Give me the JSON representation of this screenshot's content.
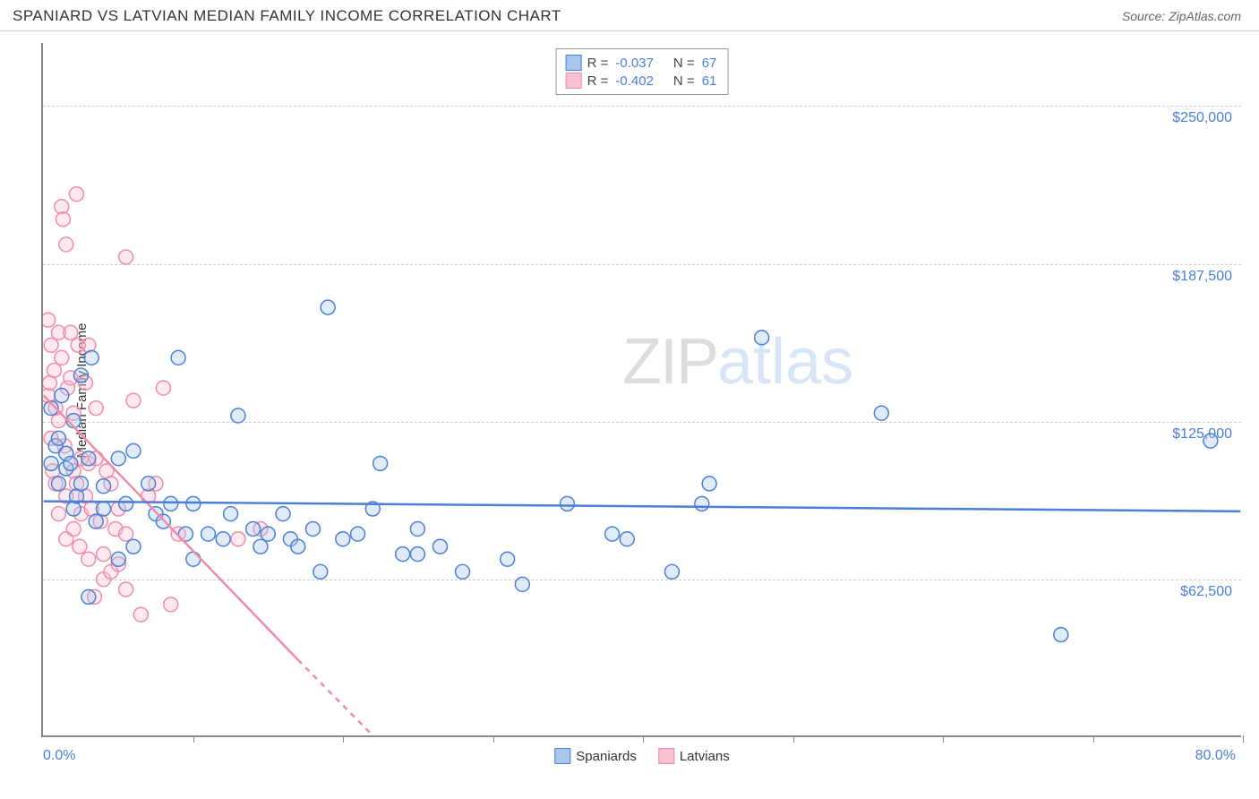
{
  "header": {
    "title": "SPANIARD VS LATVIAN MEDIAN FAMILY INCOME CORRELATION CHART",
    "source": "Source: ZipAtlas.com"
  },
  "watermark": {
    "zip": "ZIP",
    "atlas": "atlas"
  },
  "chart": {
    "type": "scatter",
    "background_color": "#ffffff",
    "grid_color": "#cccccc",
    "axis_color": "#888888",
    "y_axis_title": "Median Family Income",
    "y_axis_title_fontsize": 15,
    "x_axis_start_label": "0.0%",
    "x_axis_end_label": "80.0%",
    "tick_label_color": "#4a7fd8",
    "tick_label_fontsize": 16,
    "xlim": [
      0,
      80
    ],
    "ylim": [
      0,
      275000
    ],
    "x_ticks": [
      0,
      10,
      20,
      30,
      40,
      50,
      60,
      70,
      80
    ],
    "y_ticks": [
      62500,
      125000,
      187500,
      250000
    ],
    "y_tick_labels": [
      "$62,500",
      "$125,000",
      "$187,500",
      "$250,000"
    ],
    "marker_radius": 8,
    "marker_stroke_width": 1.5,
    "marker_fill_opacity": 0.35,
    "trend_line_width": 2.5,
    "series": {
      "spaniards": {
        "label": "Spaniards",
        "color_stroke": "#4a7fd8",
        "color_fill": "#a8c5ec",
        "R": "-0.037",
        "N": "67",
        "trend": {
          "x1": 0,
          "y1": 93000,
          "x2": 80,
          "y2": 89000
        },
        "points": [
          [
            0.5,
            108000
          ],
          [
            0.5,
            130000
          ],
          [
            0.8,
            115000
          ],
          [
            1,
            118000
          ],
          [
            1,
            100000
          ],
          [
            1.2,
            135000
          ],
          [
            1.5,
            106000
          ],
          [
            1.5,
            112000
          ],
          [
            1.8,
            108000
          ],
          [
            2,
            125000
          ],
          [
            2,
            90000
          ],
          [
            2.2,
            95000
          ],
          [
            2.5,
            100000
          ],
          [
            2.5,
            143000
          ],
          [
            3,
            55000
          ],
          [
            3,
            110000
          ],
          [
            3.2,
            150000
          ],
          [
            3.5,
            85000
          ],
          [
            4,
            90000
          ],
          [
            4,
            99000
          ],
          [
            5,
            70000
          ],
          [
            5,
            110000
          ],
          [
            5.5,
            92000
          ],
          [
            6,
            75000
          ],
          [
            6,
            113000
          ],
          [
            7,
            100000
          ],
          [
            7.5,
            88000
          ],
          [
            8,
            85000
          ],
          [
            8.5,
            92000
          ],
          [
            9,
            150000
          ],
          [
            9.5,
            80000
          ],
          [
            10,
            70000
          ],
          [
            10,
            92000
          ],
          [
            11,
            80000
          ],
          [
            12,
            78000
          ],
          [
            12.5,
            88000
          ],
          [
            13,
            127000
          ],
          [
            14,
            82000
          ],
          [
            14.5,
            75000
          ],
          [
            15,
            80000
          ],
          [
            16,
            88000
          ],
          [
            16.5,
            78000
          ],
          [
            17,
            75000
          ],
          [
            18,
            82000
          ],
          [
            18.5,
            65000
          ],
          [
            19,
            170000
          ],
          [
            20,
            78000
          ],
          [
            21,
            80000
          ],
          [
            22,
            90000
          ],
          [
            22.5,
            108000
          ],
          [
            24,
            72000
          ],
          [
            25,
            82000
          ],
          [
            25,
            72000
          ],
          [
            26.5,
            75000
          ],
          [
            28,
            65000
          ],
          [
            31,
            70000
          ],
          [
            32,
            60000
          ],
          [
            35,
            92000
          ],
          [
            38,
            80000
          ],
          [
            39,
            78000
          ],
          [
            42,
            65000
          ],
          [
            44,
            92000
          ],
          [
            44.5,
            100000
          ],
          [
            48,
            158000
          ],
          [
            56,
            128000
          ],
          [
            68,
            40000
          ],
          [
            78,
            117000
          ]
        ]
      },
      "latvians": {
        "label": "Latvians",
        "color_stroke": "#f08ca8",
        "color_fill": "#f8c0d0",
        "R": "-0.402",
        "N": "61",
        "trend_solid": {
          "x1": 0,
          "y1": 135000,
          "x2": 17,
          "y2": 30000
        },
        "trend_dashed": {
          "x1": 17,
          "y1": 30000,
          "x2": 22,
          "y2": 0
        },
        "points": [
          [
            0.3,
            165000
          ],
          [
            0.3,
            135000
          ],
          [
            0.4,
            140000
          ],
          [
            0.5,
            155000
          ],
          [
            0.5,
            118000
          ],
          [
            0.6,
            105000
          ],
          [
            0.7,
            145000
          ],
          [
            0.8,
            100000
          ],
          [
            0.8,
            130000
          ],
          [
            1,
            160000
          ],
          [
            1,
            125000
          ],
          [
            1,
            88000
          ],
          [
            1.2,
            210000
          ],
          [
            1.2,
            150000
          ],
          [
            1.3,
            205000
          ],
          [
            1.4,
            115000
          ],
          [
            1.5,
            195000
          ],
          [
            1.5,
            95000
          ],
          [
            1.5,
            78000
          ],
          [
            1.6,
            138000
          ],
          [
            1.8,
            160000
          ],
          [
            1.8,
            142000
          ],
          [
            2,
            128000
          ],
          [
            2,
            105000
          ],
          [
            2,
            82000
          ],
          [
            2.2,
            215000
          ],
          [
            2.2,
            100000
          ],
          [
            2.3,
            155000
          ],
          [
            2.4,
            75000
          ],
          [
            2.5,
            110000
          ],
          [
            2.5,
            88000
          ],
          [
            2.8,
            95000
          ],
          [
            2.8,
            140000
          ],
          [
            3,
            155000
          ],
          [
            3,
            108000
          ],
          [
            3,
            70000
          ],
          [
            3.2,
            90000
          ],
          [
            3.4,
            55000
          ],
          [
            3.5,
            110000
          ],
          [
            3.5,
            130000
          ],
          [
            3.8,
            85000
          ],
          [
            4,
            72000
          ],
          [
            4,
            62000
          ],
          [
            4.2,
            105000
          ],
          [
            4.5,
            65000
          ],
          [
            4.5,
            100000
          ],
          [
            4.8,
            82000
          ],
          [
            5,
            68000
          ],
          [
            5,
            90000
          ],
          [
            5.5,
            190000
          ],
          [
            5.5,
            80000
          ],
          [
            5.5,
            58000
          ],
          [
            6,
            133000
          ],
          [
            6.5,
            48000
          ],
          [
            7,
            95000
          ],
          [
            7.5,
            100000
          ],
          [
            8,
            138000
          ],
          [
            8.5,
            52000
          ],
          [
            9,
            80000
          ],
          [
            13,
            78000
          ],
          [
            14.5,
            82000
          ]
        ]
      }
    },
    "legend_labels": {
      "R_prefix": "R = ",
      "N_prefix": "N = "
    }
  }
}
